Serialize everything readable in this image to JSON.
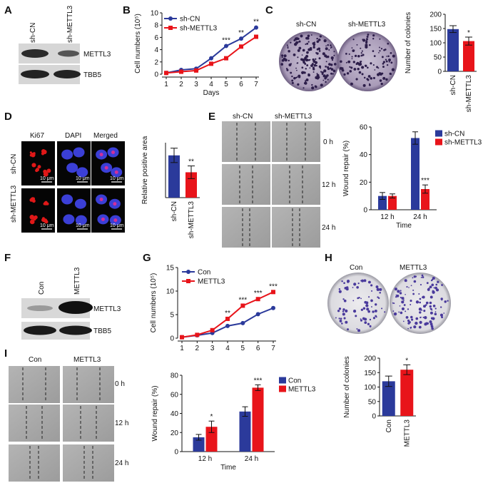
{
  "panels": {
    "A": {
      "label": "A",
      "lanes": [
        "sh-CN",
        "sh-METTL3"
      ],
      "blots": [
        "METTL3",
        "TBB5"
      ]
    },
    "B": {
      "label": "B"
    },
    "C": {
      "label": "C",
      "plate_labels": [
        "sh-CN",
        "sh-METTL3"
      ]
    },
    "D": {
      "label": "D",
      "columns": [
        "Ki67",
        "DAPI",
        "Merged"
      ],
      "rows": [
        "sh-CN",
        "sh-METTL3"
      ],
      "scale_bar": "10 μm"
    },
    "E": {
      "label": "E",
      "columns": [
        "sh-CN",
        "sh-METTL3"
      ],
      "times": [
        "0 h",
        "12 h",
        "24 h"
      ]
    },
    "F": {
      "label": "F",
      "lanes": [
        "Con",
        "METTL3"
      ],
      "blots": [
        "METTL3",
        "TBB5"
      ]
    },
    "G": {
      "label": "G"
    },
    "H": {
      "label": "H",
      "plate_labels": [
        "Con",
        "METTL3"
      ]
    },
    "I": {
      "label": "I",
      "columns": [
        "Con",
        "METTL3"
      ],
      "times": [
        "0 h",
        "12 h",
        "24 h"
      ]
    }
  },
  "colors": {
    "blue": "#2b3a9b",
    "red": "#e8141a"
  },
  "chart_data": [
    {
      "id": "B",
      "type": "line",
      "xlabel": "Days",
      "ylabel": "Cell numbers (10⁵)",
      "x": [
        1,
        2,
        3,
        4,
        5,
        6,
        7
      ],
      "xlim": [
        1,
        7
      ],
      "ylim": [
        0,
        10
      ],
      "yticks": [
        0,
        2,
        4,
        6,
        8,
        10
      ],
      "series": [
        {
          "name": "sh-CN",
          "color": "#2b3a9b",
          "marker": "circle",
          "values": [
            0.2,
            0.7,
            0.9,
            2.6,
            4.6,
            5.8,
            7.6
          ]
        },
        {
          "name": "sh-METTL3",
          "color": "#e8141a",
          "marker": "square",
          "values": [
            0.2,
            0.4,
            0.6,
            1.7,
            2.6,
            4.5,
            6.1
          ]
        }
      ],
      "annotations": [
        {
          "x": 5,
          "text": "***"
        },
        {
          "x": 6,
          "text": "**"
        },
        {
          "x": 7,
          "text": "**"
        }
      ],
      "legend": "top-left"
    },
    {
      "id": "C",
      "type": "bar",
      "ylabel": "Number of colonies",
      "categories": [
        "sh-CN",
        "sh-METTL3"
      ],
      "values": [
        148,
        106
      ],
      "errors": [
        12,
        14
      ],
      "colors": [
        "#2b3a9b",
        "#e8141a"
      ],
      "ylim": [
        0,
        200
      ],
      "yticks": [
        0,
        50,
        100,
        150,
        200
      ],
      "annotations": [
        {
          "category": "sh-METTL3",
          "text": "*"
        }
      ]
    },
    {
      "id": "D",
      "type": "bar",
      "ylabel": "Relative positive area",
      "categories": [
        "sh-CN",
        "sh-METTL3"
      ],
      "values": [
        1.0,
        0.6
      ],
      "errors": [
        0.17,
        0.15
      ],
      "colors": [
        "#2b3a9b",
        "#e8141a"
      ],
      "ylim": [
        0,
        1.3
      ],
      "annotations": [
        {
          "category": "sh-METTL3",
          "text": "**"
        }
      ]
    },
    {
      "id": "E",
      "type": "bar",
      "xlabel": "Time",
      "ylabel": "Wound repair (%)",
      "categories": [
        "12 h",
        "24 h"
      ],
      "ylim": [
        0,
        60
      ],
      "yticks": [
        0,
        20,
        40,
        60
      ],
      "series": [
        {
          "name": "sh-CN",
          "color": "#2b3a9b",
          "values": [
            10,
            52
          ],
          "errors": [
            2.5,
            4.5
          ]
        },
        {
          "name": "sh-METTL3",
          "color": "#e8141a",
          "values": [
            10,
            15
          ],
          "errors": [
            1.5,
            3
          ]
        }
      ],
      "annotations": [
        {
          "category": "24 h",
          "series": "sh-METTL3",
          "text": "***"
        }
      ],
      "legend": "top-right"
    },
    {
      "id": "G",
      "type": "line",
      "xlabel": "",
      "ylabel": "Cell numbers (10⁵)",
      "x": [
        1,
        2,
        3,
        4,
        5,
        6,
        7
      ],
      "xlim": [
        1,
        7
      ],
      "ylim": [
        0,
        15
      ],
      "yticks": [
        0,
        5,
        10,
        15
      ],
      "series": [
        {
          "name": "Con",
          "color": "#2b3a9b",
          "marker": "circle",
          "values": [
            0.2,
            0.6,
            1.1,
            2.6,
            3.2,
            5.1,
            6.4
          ]
        },
        {
          "name": "METTL3",
          "color": "#e8141a",
          "marker": "square",
          "values": [
            0.2,
            0.7,
            1.7,
            4.1,
            6.9,
            8.3,
            9.8
          ]
        }
      ],
      "annotations": [
        {
          "x": 4,
          "text": "**"
        },
        {
          "x": 5,
          "text": "***"
        },
        {
          "x": 6,
          "text": "***"
        },
        {
          "x": 7,
          "text": "***"
        }
      ],
      "legend": "top-left"
    },
    {
      "id": "H",
      "type": "bar",
      "ylabel": "Number of colonies",
      "categories": [
        "Con",
        "METTL3"
      ],
      "values": [
        120,
        160
      ],
      "errors": [
        18,
        17
      ],
      "colors": [
        "#2b3a9b",
        "#e8141a"
      ],
      "ylim": [
        0,
        200
      ],
      "yticks": [
        0,
        50,
        100,
        150,
        200
      ],
      "annotations": [
        {
          "category": "METTL3",
          "text": "*"
        }
      ]
    },
    {
      "id": "I",
      "type": "bar",
      "xlabel": "Time",
      "ylabel": "Wound repair (%)",
      "categories": [
        "12 h",
        "24 h"
      ],
      "ylim": [
        0,
        80
      ],
      "yticks": [
        0,
        20,
        40,
        60,
        80
      ],
      "series": [
        {
          "name": "Con",
          "color": "#2b3a9b",
          "values": [
            15,
            42
          ],
          "errors": [
            3,
            5
          ]
        },
        {
          "name": "METTL3",
          "color": "#e8141a",
          "values": [
            26,
            67
          ],
          "errors": [
            6,
            3
          ]
        }
      ],
      "annotations": [
        {
          "category": "12 h",
          "series": "METTL3",
          "text": "*"
        },
        {
          "category": "24 h",
          "series": "METTL3",
          "text": "***"
        }
      ],
      "legend": "top-right"
    }
  ]
}
